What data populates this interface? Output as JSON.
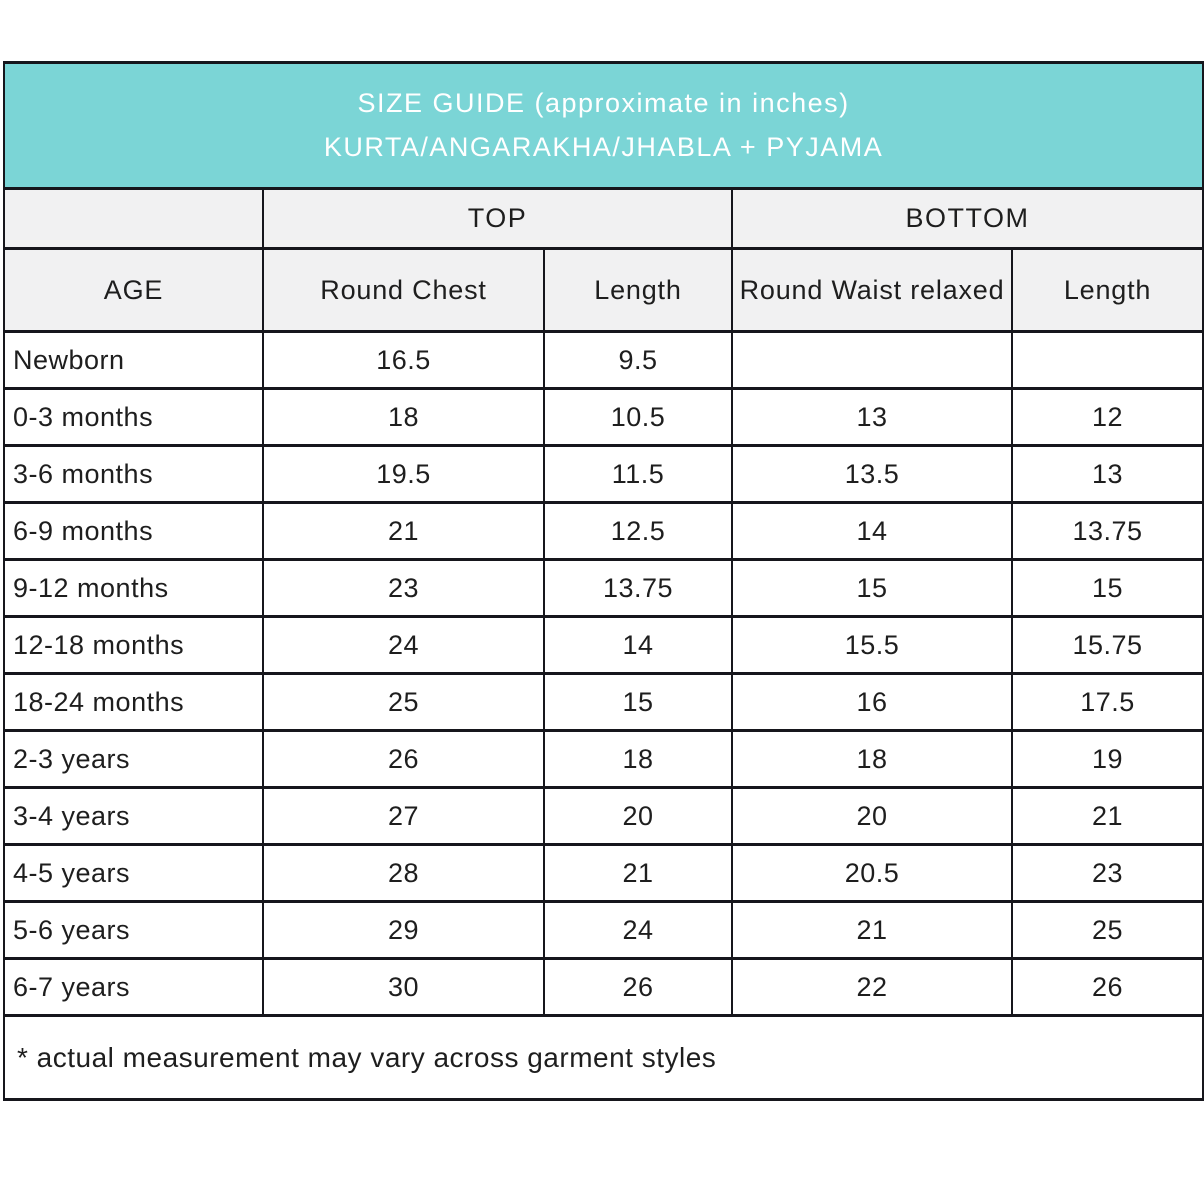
{
  "header": {
    "title_line1": "SIZE GUIDE (approximate in inches)",
    "title_line2": "KURTA/ANGARAKHA/JHABLA + PYJAMA",
    "background_color": "#7bd5d6",
    "text_color": "#ffffff"
  },
  "table": {
    "group_headers": {
      "top": "TOP",
      "bottom": "BOTTOM"
    },
    "column_headers": [
      "AGE",
      "Round Chest",
      "Length",
      "Round Waist relaxed",
      "Length"
    ],
    "rows": [
      {
        "age": "Newborn",
        "values": [
          "16.5",
          "9.5",
          "",
          ""
        ]
      },
      {
        "age": "0-3 months",
        "values": [
          "18",
          "10.5",
          "13",
          "12"
        ]
      },
      {
        "age": "3-6 months",
        "values": [
          "19.5",
          "11.5",
          "13.5",
          "13"
        ]
      },
      {
        "age": "6-9 months",
        "values": [
          "21",
          "12.5",
          "14",
          "13.75"
        ]
      },
      {
        "age": "9-12 months",
        "values": [
          "23",
          "13.75",
          "15",
          "15"
        ]
      },
      {
        "age": "12-18 months",
        "values": [
          "24",
          "14",
          "15.5",
          "15.75"
        ]
      },
      {
        "age": "18-24 months",
        "values": [
          "25",
          "15",
          "16",
          "17.5"
        ]
      },
      {
        "age": "2-3 years",
        "values": [
          "26",
          "18",
          "18",
          "19"
        ]
      },
      {
        "age": "3-4 years",
        "values": [
          "27",
          "20",
          "20",
          "21"
        ]
      },
      {
        "age": "4-5 years",
        "values": [
          "28",
          "21",
          "20.5",
          "23"
        ]
      },
      {
        "age": "5-6 years",
        "values": [
          "29",
          "24",
          "21",
          "25"
        ]
      },
      {
        "age": "6-7 years",
        "values": [
          "30",
          "26",
          "22",
          "26"
        ]
      }
    ],
    "footnote": "* actual measurement may vary across garment styles",
    "header_bg_color": "#f1f1f2",
    "border_color": "#16161c"
  }
}
